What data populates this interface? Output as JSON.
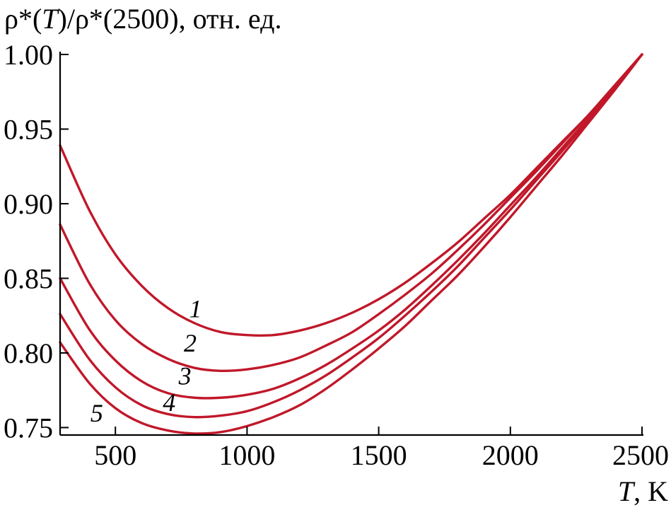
{
  "chart_data": {
    "type": "line",
    "title": "ρ*(T)/ρ*(2500), отн. ед.",
    "title_parts": {
      "prefix": "ρ*(",
      "italic": "T",
      "suffix": ")/ρ*(2500), отн. ед."
    },
    "xlabel": "T, K",
    "xlabel_parts": {
      "italic": "T",
      "suffix": ", K"
    },
    "ylabel": "",
    "xlim": [
      290,
      2500
    ],
    "ylim": [
      0.745,
      1.0
    ],
    "x_ticks": [
      500,
      1000,
      1500,
      2000,
      2500
    ],
    "x_tick_labels": [
      "500",
      "1000",
      "1500",
      "2000",
      "2500"
    ],
    "y_ticks": [
      0.75,
      0.8,
      0.85,
      0.9,
      0.95,
      1.0
    ],
    "y_tick_labels": [
      "0.75",
      "0.80",
      "0.85",
      "0.90",
      "0.95",
      "1.00"
    ],
    "grid": false,
    "color": "#c0182a",
    "series": [
      {
        "name": "1",
        "label": "1",
        "label_at": [
          780,
          0.824
        ],
        "x": [
          290,
          400,
          500,
          600,
          700,
          800,
          900,
          1000,
          1100,
          1200,
          1300,
          1400,
          1500,
          1600,
          1700,
          1800,
          1900,
          2000,
          2100,
          2200,
          2300,
          2400,
          2500
        ],
        "y": [
          0.939,
          0.896,
          0.866,
          0.845,
          0.83,
          0.82,
          0.814,
          0.812,
          0.812,
          0.815,
          0.82,
          0.827,
          0.836,
          0.847,
          0.86,
          0.874,
          0.89,
          0.906,
          0.924,
          0.942,
          0.96,
          0.98,
          1.0
        ]
      },
      {
        "name": "2",
        "label": "2",
        "label_at": [
          760,
          0.801
        ],
        "x": [
          290,
          400,
          500,
          600,
          700,
          800,
          900,
          1000,
          1100,
          1200,
          1300,
          1400,
          1500,
          1600,
          1700,
          1800,
          1900,
          2000,
          2100,
          2200,
          2300,
          2400,
          2500
        ],
        "y": [
          0.886,
          0.847,
          0.822,
          0.806,
          0.796,
          0.79,
          0.788,
          0.789,
          0.792,
          0.797,
          0.805,
          0.814,
          0.826,
          0.839,
          0.853,
          0.869,
          0.886,
          0.904,
          0.922,
          0.941,
          0.96,
          0.98,
          1.0
        ]
      },
      {
        "name": "3",
        "label": "3",
        "label_at": [
          740,
          0.779
        ],
        "x": [
          290,
          400,
          500,
          600,
          700,
          800,
          900,
          1000,
          1100,
          1200,
          1300,
          1400,
          1500,
          1600,
          1700,
          1800,
          1900,
          2000,
          2100,
          2200,
          2300,
          2400,
          2500
        ],
        "y": [
          0.85,
          0.816,
          0.795,
          0.781,
          0.773,
          0.77,
          0.77,
          0.772,
          0.776,
          0.783,
          0.792,
          0.803,
          0.815,
          0.829,
          0.845,
          0.862,
          0.88,
          0.899,
          0.918,
          0.938,
          0.958,
          0.979,
          1.0
        ]
      },
      {
        "name": "4",
        "label": "4",
        "label_at": [
          680,
          0.761
        ],
        "x": [
          290,
          400,
          500,
          600,
          700,
          800,
          900,
          1000,
          1100,
          1200,
          1300,
          1400,
          1500,
          1600,
          1700,
          1800,
          1900,
          2000,
          2100,
          2200,
          2300,
          2400,
          2500
        ],
        "y": [
          0.826,
          0.796,
          0.777,
          0.765,
          0.759,
          0.757,
          0.758,
          0.761,
          0.767,
          0.775,
          0.785,
          0.797,
          0.81,
          0.825,
          0.841,
          0.858,
          0.877,
          0.896,
          0.916,
          0.936,
          0.957,
          0.978,
          1.0
        ]
      },
      {
        "name": "5",
        "label": "5",
        "label_at": [
          405,
          0.754
        ],
        "x": [
          290,
          400,
          500,
          600,
          700,
          800,
          900,
          1000,
          1100,
          1200,
          1300,
          1400,
          1500,
          1600,
          1700,
          1800,
          1900,
          2000,
          2100,
          2200,
          2300,
          2400,
          2500
        ],
        "y": [
          0.807,
          0.78,
          0.763,
          0.753,
          0.748,
          0.746,
          0.747,
          0.751,
          0.757,
          0.765,
          0.776,
          0.789,
          0.803,
          0.818,
          0.835,
          0.852,
          0.871,
          0.891,
          0.912,
          0.933,
          0.955,
          0.977,
          1.0
        ]
      }
    ]
  }
}
